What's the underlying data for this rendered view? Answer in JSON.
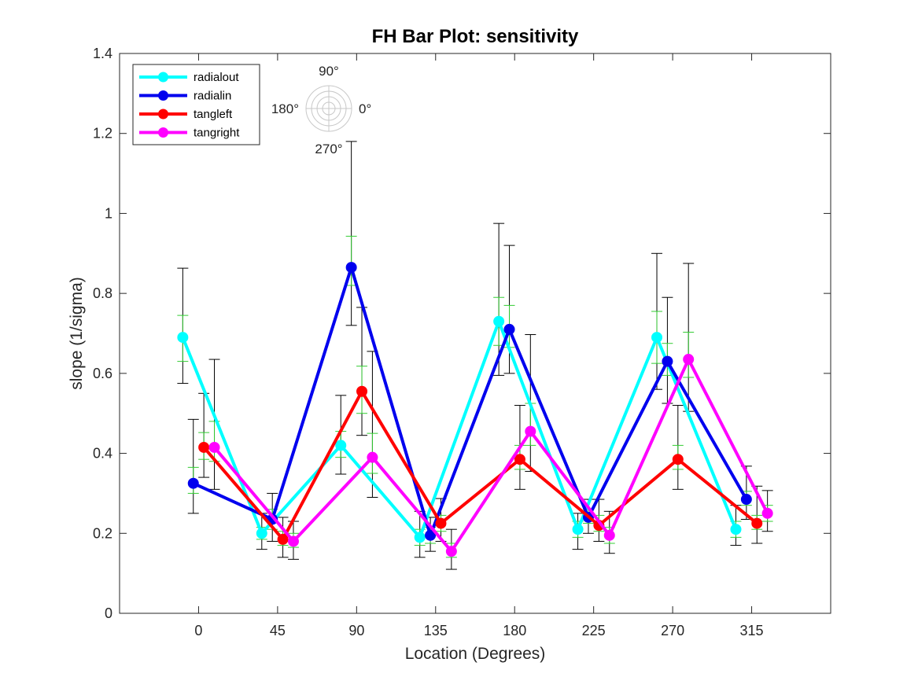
{
  "chart_data": {
    "type": "line",
    "title": "FH Bar Plot: sensitivity",
    "xlabel": "Location (Degrees)",
    "ylabel": "slope (1/sigma)",
    "xlim": [
      -45,
      360
    ],
    "ylim": [
      0,
      1.4
    ],
    "xticks": [
      0,
      45,
      90,
      135,
      180,
      225,
      270,
      315
    ],
    "xtick_labels": [
      "0",
      "45",
      "90",
      "135",
      "180",
      "225",
      "270",
      "315"
    ],
    "yticks": [
      0,
      0.2,
      0.4,
      0.6,
      0.8,
      1.0,
      1.2,
      1.4
    ],
    "ytick_labels": [
      "0",
      "0.2",
      "0.4",
      "0.6",
      "0.8",
      "1",
      "1.2",
      "1.4"
    ],
    "grid": false,
    "legend_location": "top-left",
    "colors": {
      "axis": "#262626",
      "error_outer": "#000000",
      "error_inner": "#33cc33"
    },
    "series": [
      {
        "name": "radialout",
        "color": "#00ffff",
        "x": [
          -9,
          36,
          81,
          126,
          171,
          216,
          261,
          306
        ],
        "y": [
          0.69,
          0.2,
          0.42,
          0.19,
          0.73,
          0.21,
          0.69,
          0.21
        ],
        "err_outer": [
          [
            0.575,
            0.863
          ],
          [
            0.16,
            0.25
          ],
          [
            0.348,
            0.545
          ],
          [
            0.14,
            0.255
          ],
          [
            0.595,
            0.975
          ],
          [
            0.16,
            0.25
          ],
          [
            0.56,
            0.9
          ],
          [
            0.17,
            0.27
          ]
        ],
        "err_inner": [
          [
            0.63,
            0.745
          ],
          [
            0.185,
            0.215
          ],
          [
            0.39,
            0.455
          ],
          [
            0.17,
            0.21
          ],
          [
            0.67,
            0.79
          ],
          [
            0.19,
            0.23
          ],
          [
            0.625,
            0.755
          ],
          [
            0.19,
            0.23
          ]
        ]
      },
      {
        "name": "radialin",
        "color": "#0000ee",
        "x": [
          -3,
          42,
          87,
          132,
          177,
          222,
          267,
          312
        ],
        "y": [
          0.325,
          0.235,
          0.865,
          0.195,
          0.71,
          0.24,
          0.63,
          0.285
        ],
        "err_outer": [
          [
            0.25,
            0.485
          ],
          [
            0.18,
            0.3
          ],
          [
            0.72,
            1.18
          ],
          [
            0.155,
            0.24
          ],
          [
            0.6,
            0.92
          ],
          [
            0.2,
            0.285
          ],
          [
            0.525,
            0.79
          ],
          [
            0.235,
            0.368
          ]
        ],
        "err_inner": [
          [
            0.3,
            0.365
          ],
          [
            0.21,
            0.26
          ],
          [
            0.82,
            0.943
          ],
          [
            0.175,
            0.215
          ],
          [
            0.665,
            0.77
          ],
          [
            0.225,
            0.26
          ],
          [
            0.595,
            0.675
          ],
          [
            0.27,
            0.305
          ]
        ]
      },
      {
        "name": "tangleft",
        "color": "#ff0000",
        "x": [
          3,
          48,
          93,
          138,
          183,
          228,
          273,
          318
        ],
        "y": [
          0.415,
          0.185,
          0.555,
          0.225,
          0.385,
          0.22,
          0.385,
          0.225
        ],
        "err_outer": [
          [
            0.34,
            0.55
          ],
          [
            0.14,
            0.24
          ],
          [
            0.445,
            0.765
          ],
          [
            0.18,
            0.287
          ],
          [
            0.31,
            0.52
          ],
          [
            0.18,
            0.285
          ],
          [
            0.31,
            0.52
          ],
          [
            0.175,
            0.318
          ]
        ],
        "err_inner": [
          [
            0.385,
            0.452
          ],
          [
            0.17,
            0.205
          ],
          [
            0.5,
            0.618
          ],
          [
            0.205,
            0.245
          ],
          [
            0.36,
            0.42
          ],
          [
            0.205,
            0.245
          ],
          [
            0.36,
            0.42
          ],
          [
            0.21,
            0.245
          ]
        ]
      },
      {
        "name": "tangright",
        "color": "#ff00ff",
        "x": [
          9,
          54,
          99,
          144,
          189,
          234,
          279,
          324
        ],
        "y": [
          0.415,
          0.18,
          0.39,
          0.155,
          0.455,
          0.195,
          0.635,
          0.25
        ],
        "err_outer": [
          [
            0.31,
            0.635
          ],
          [
            0.135,
            0.23
          ],
          [
            0.29,
            0.655
          ],
          [
            0.11,
            0.21
          ],
          [
            0.355,
            0.697
          ],
          [
            0.15,
            0.255
          ],
          [
            0.505,
            0.875
          ],
          [
            0.205,
            0.307
          ]
        ],
        "err_inner": [
          [
            0.38,
            0.48
          ],
          [
            0.165,
            0.2
          ],
          [
            0.35,
            0.45
          ],
          [
            0.14,
            0.175
          ],
          [
            0.42,
            0.525
          ],
          [
            0.175,
            0.215
          ],
          [
            0.59,
            0.703
          ],
          [
            0.23,
            0.27
          ]
        ]
      }
    ],
    "inset": {
      "type": "polar-compass",
      "labels": {
        "top": "90°",
        "left": "180°",
        "right": "0°",
        "bottom": "270°"
      }
    }
  }
}
